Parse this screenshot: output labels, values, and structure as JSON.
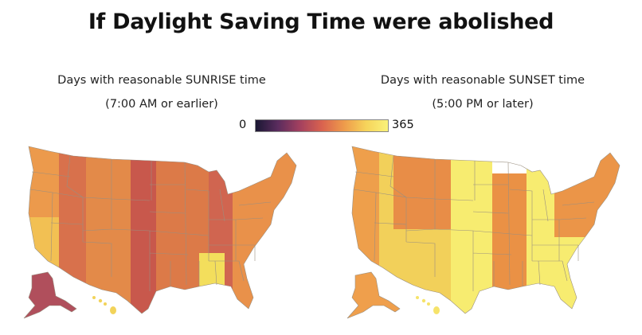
{
  "title": "If Daylight Saving Time were abolished",
  "maps": [
    {
      "subtitle_line1": "Days with reasonable SUNRISE time",
      "subtitle_line2": "(7:00 AM or earlier)"
    },
    {
      "subtitle_line1": "Days with reasonable SUNSET time",
      "subtitle_line2": "(5:00 PM or later)"
    }
  ],
  "legend": {
    "min_label": "0",
    "max_label": "365",
    "colors": [
      "#1b1733",
      "#5a2c5e",
      "#a3405f",
      "#d9624f",
      "#ee9a4b",
      "#f6d35a",
      "#f9f27a"
    ]
  },
  "colors": {
    "sunrise_pacific": "#ec9a4c",
    "sunrise_pacific_south": "#f4c955",
    "sunrise_mountain": "#e38a49",
    "sunrise_mountain_west": "#d8714c",
    "sunrise_central": "#dc7a48",
    "sunrise_central_west": "#c8584c",
    "sunrise_eastern": "#e9914a",
    "sunrise_eastern_west": "#d06550",
    "sunrise_southeast": "#f3de5c",
    "sunrise_alaska": "#b04f5c",
    "sunrise_hawaii": "#f2d35a",
    "sunset_pacific": "#ee9f4b",
    "sunset_mountain": "#f2d05a",
    "sunset_mountain_west": "#e88d47",
    "sunset_central": "#f7ec70",
    "sunset_central_east": "#ea9145",
    "sunset_eastern": "#f7ec70",
    "sunset_northeast": "#eb9548",
    "sunset_alaska": "#ef9f4c",
    "sunset_hawaii": "#f6e36a",
    "border": "#9a8f80"
  }
}
